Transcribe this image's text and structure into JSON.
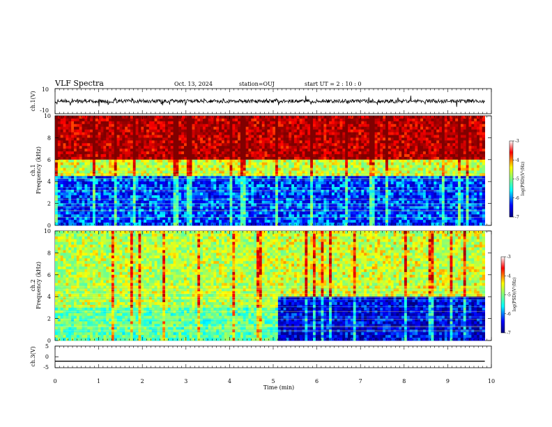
{
  "header": {
    "title": "VLF Spectra",
    "date": "Oct. 13, 2024",
    "station": "station=OUJ",
    "start_ut": "start UT =  2 : 10 : 0"
  },
  "chart_data": [
    {
      "type": "line",
      "name": "ch1-waveform",
      "ylabel": "ch.1(V)",
      "ylim": [
        -10,
        10
      ],
      "yticks": [
        "10",
        "-10"
      ],
      "xlim": [
        0,
        10
      ],
      "baseline": 0,
      "amplitude_typical": 1.5,
      "amplitude_spikes": 4
    },
    {
      "type": "heatmap",
      "name": "ch1-spectrogram",
      "ylabel": "ch.1\nFrequency (kHz)",
      "xlim": [
        0,
        9.85
      ],
      "ylim": [
        0,
        10
      ],
      "yticks": [
        "0",
        "2",
        "4",
        "6",
        "8",
        "10"
      ],
      "colorbar": {
        "label": "log(PSD)(V²/Hz)",
        "range": [
          -7,
          -3
        ],
        "ticks": [
          "-3",
          "-4",
          "-5",
          "-6",
          "-7"
        ]
      },
      "value_by_band": [
        {
          "freq_range_khz": [
            6,
            10
          ],
          "log_psd": -3.3
        },
        {
          "freq_range_khz": [
            4.6,
            6
          ],
          "log_psd": -4.6
        },
        {
          "freq_range_khz": [
            0,
            4.6
          ],
          "log_psd": -6.2
        }
      ]
    },
    {
      "type": "heatmap",
      "name": "ch2-spectrogram",
      "ylabel": "ch.2\nFrequency (kHz)",
      "xlim": [
        0,
        9.85
      ],
      "ylim": [
        0,
        10
      ],
      "yticks": [
        "0",
        "2",
        "4",
        "6",
        "8",
        "10"
      ],
      "colorbar": {
        "label": "log(PSD)(V²/Hz)",
        "range": [
          -7,
          -3
        ],
        "ticks": [
          "-3",
          "-4",
          "-5",
          "-6",
          "-7"
        ]
      },
      "value_by_band": [
        {
          "time_range_min": [
            0,
            5.1
          ],
          "freq_range_khz": [
            3,
            10
          ],
          "log_psd": -4.7
        },
        {
          "time_range_min": [
            0,
            5.1
          ],
          "freq_range_khz": [
            0,
            3
          ],
          "log_psd": -5.2
        },
        {
          "time_range_min": [
            5.1,
            9.85
          ],
          "freq_range_khz": [
            4,
            10
          ],
          "log_psd": -4.6
        },
        {
          "time_range_min": [
            5.1,
            9.85
          ],
          "freq_range_khz": [
            0,
            4
          ],
          "log_psd": -6.5
        }
      ]
    },
    {
      "type": "line",
      "name": "ch3-waveform",
      "ylabel": "ch.3(V)",
      "ylim": [
        -5,
        5
      ],
      "yticks": [
        "5",
        "0",
        "-5"
      ],
      "xlim": [
        0,
        10
      ],
      "constant_value": -2
    }
  ],
  "xaxis": {
    "label": "Time (min)",
    "ticks": [
      "0",
      "1",
      "2",
      "3",
      "4",
      "5",
      "6",
      "7",
      "8",
      "9",
      "10"
    ]
  },
  "colors": {
    "colormap": [
      "#00007f",
      "#0000ff",
      "#00ffff",
      "#7fff7f",
      "#ffff00",
      "#ff0000",
      "#7f0000"
    ]
  }
}
